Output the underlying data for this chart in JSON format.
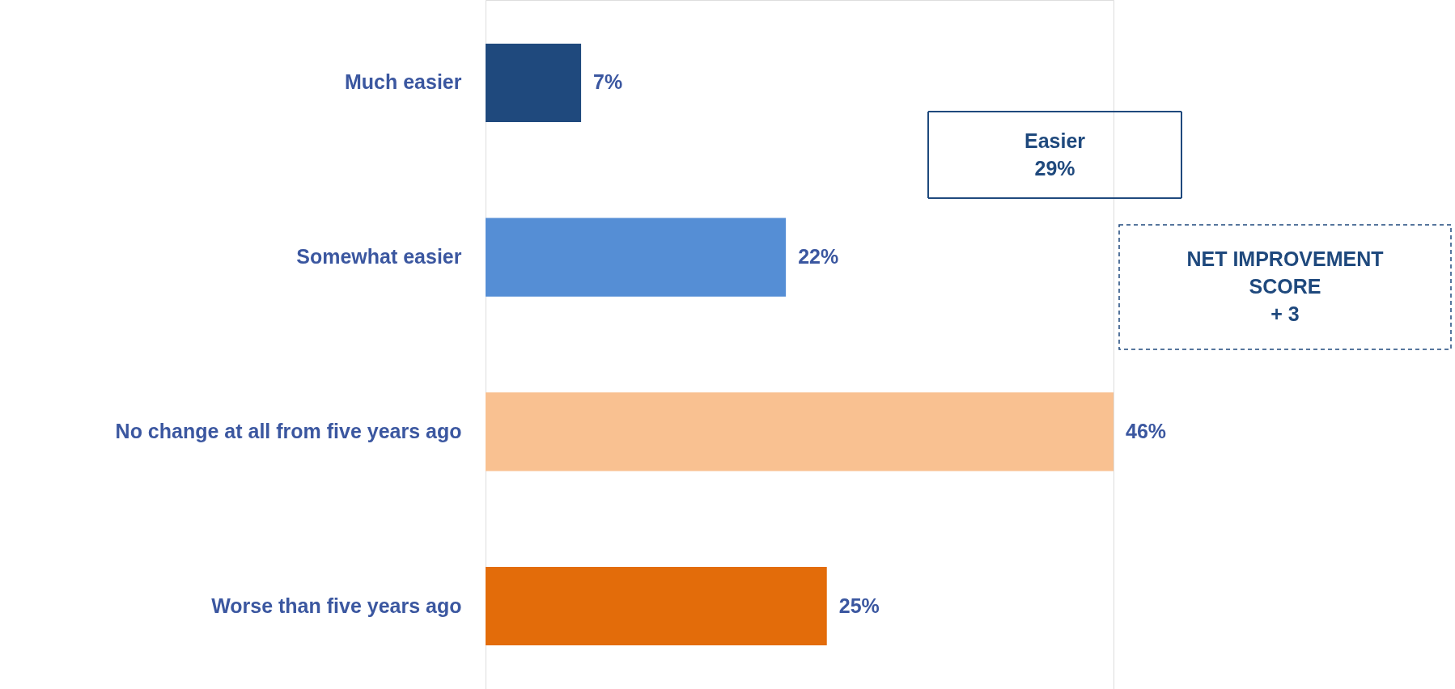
{
  "chart_data": {
    "type": "bar",
    "orientation": "horizontal",
    "categories": [
      "Much easier",
      "Somewhat easier",
      "No change at all from five years ago",
      "Worse than five years ago"
    ],
    "values": [
      7,
      22,
      46,
      25
    ],
    "value_labels": [
      "7%",
      "22%",
      "46%",
      "25%"
    ],
    "colors": [
      "#1f497d",
      "#558ed5",
      "#f9c191",
      "#e36c0a"
    ],
    "tick_labels": "y",
    "grid": false,
    "annotations": [
      "Easier\n29%",
      "NET IMPROVEMENT\nSCORE\n+ 3"
    ]
  }
}
